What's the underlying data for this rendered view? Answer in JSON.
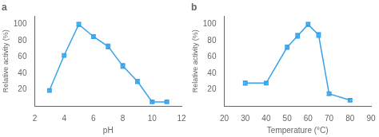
{
  "chart_data": [
    {
      "type": "line",
      "title": "a",
      "x": [
        3,
        4,
        5,
        6,
        7,
        8,
        9,
        10,
        11
      ],
      "series": [
        {
          "values": [
            19,
            62,
            100,
            85,
            73,
            49,
            30,
            5,
            5
          ],
          "yerr": [
            1.5,
            2.0,
            2.5,
            2.5,
            3.0,
            3.0,
            2.5,
            1.5,
            1.0
          ],
          "marker": "square",
          "line_style": "solid"
        }
      ],
      "x_label": "pH",
      "y_label": "Relative activity (%)",
      "xlim": [
        2,
        12
      ],
      "ylim": [
        0,
        110
      ],
      "xticks": [
        2,
        4,
        6,
        8,
        10,
        12
      ],
      "yticks": [
        20,
        40,
        60,
        80,
        100
      ],
      "grid": false
    },
    {
      "type": "line",
      "title": "b",
      "x": [
        30,
        40,
        50,
        55,
        60,
        65,
        70,
        80
      ],
      "series": [
        {
          "values": [
            28,
            28,
            72,
            86,
            100,
            87,
            15,
            7
          ],
          "yerr": [
            2.5,
            2.0,
            2.5,
            3.0,
            2.5,
            3.0,
            2.0,
            1.5
          ],
          "marker": "square",
          "line_style": "solid"
        }
      ],
      "x_label": "Temperature (°C)",
      "y_label": "Relative activity (%)",
      "xlim": [
        20,
        90
      ],
      "ylim": [
        0,
        110
      ],
      "xticks": [
        20,
        30,
        40,
        50,
        60,
        70,
        80,
        90
      ],
      "yticks": [
        20,
        40,
        60,
        80,
        100
      ],
      "grid": false
    }
  ]
}
